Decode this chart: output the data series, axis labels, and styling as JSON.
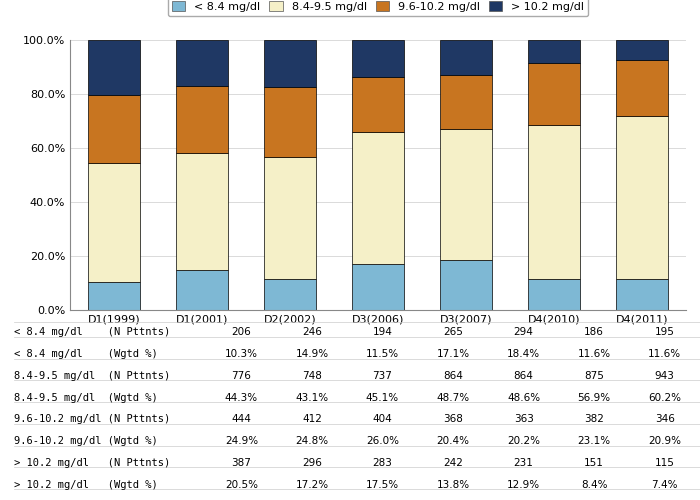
{
  "categories": [
    "D1(1999)",
    "D1(2001)",
    "D2(2002)",
    "D3(2006)",
    "D3(2007)",
    "D4(2010)",
    "D4(2011)"
  ],
  "segments": {
    "< 8.4 mg/dl": [
      10.3,
      14.9,
      11.5,
      17.1,
      18.4,
      11.6,
      11.6
    ],
    "8.4-9.5 mg/dl": [
      44.3,
      43.1,
      45.1,
      48.7,
      48.6,
      56.9,
      60.2
    ],
    "9.6-10.2 mg/dl": [
      24.9,
      24.8,
      26.0,
      20.4,
      20.2,
      23.1,
      20.9
    ],
    "> 10.2 mg/dl": [
      20.5,
      17.2,
      17.5,
      13.8,
      12.9,
      8.4,
      7.4
    ]
  },
  "colors": {
    "< 8.4 mg/dl": "#7eb8d4",
    "8.4-9.5 mg/dl": "#f5f0c8",
    "9.6-10.2 mg/dl": "#c87520",
    "> 10.2 mg/dl": "#1f3864"
  },
  "legend_labels": [
    "< 8.4 mg/dl",
    "8.4-9.5 mg/dl",
    "9.6-10.2 mg/dl",
    "> 10.2 mg/dl"
  ],
  "table_row_labels": [
    "< 8.4 mg/dl    (N Pttnts)",
    "< 8.4 mg/dl    (Wgtd %)",
    "8.4-9.5 mg/dl  (N Pttnts)",
    "8.4-9.5 mg/dl  (Wgtd %)",
    "9.6-10.2 mg/dl (N Pttnts)",
    "9.6-10.2 mg/dl (Wgtd %)",
    "> 10.2 mg/dl   (N Pttnts)",
    "> 10.2 mg/dl   (Wgtd %)"
  ],
  "table_data": [
    [
      "206",
      "246",
      "194",
      "265",
      "294",
      "186",
      "195"
    ],
    [
      "10.3%",
      "14.9%",
      "11.5%",
      "17.1%",
      "18.4%",
      "11.6%",
      "11.6%"
    ],
    [
      "776",
      "748",
      "737",
      "864",
      "864",
      "875",
      "943"
    ],
    [
      "44.3%",
      "43.1%",
      "45.1%",
      "48.7%",
      "48.6%",
      "56.9%",
      "60.2%"
    ],
    [
      "444",
      "412",
      "404",
      "368",
      "363",
      "382",
      "346"
    ],
    [
      "24.9%",
      "24.8%",
      "26.0%",
      "20.4%",
      "20.2%",
      "23.1%",
      "20.9%"
    ],
    [
      "387",
      "296",
      "283",
      "242",
      "231",
      "151",
      "115"
    ],
    [
      "20.5%",
      "17.2%",
      "17.5%",
      "13.8%",
      "12.9%",
      "8.4%",
      "7.4%"
    ]
  ],
  "ylim": [
    0,
    100
  ],
  "yticks": [
    0,
    20,
    40,
    60,
    80,
    100
  ],
  "ytick_labels": [
    "0.0%",
    "20.0%",
    "40.0%",
    "60.0%",
    "80.0%",
    "100.0%"
  ],
  "bar_edge_color": "#000000",
  "bar_width": 0.6,
  "background_color": "#ffffff",
  "grid_color": "#cccccc",
  "font_size_axis": 8,
  "font_size_legend": 8,
  "font_size_table": 7.5
}
